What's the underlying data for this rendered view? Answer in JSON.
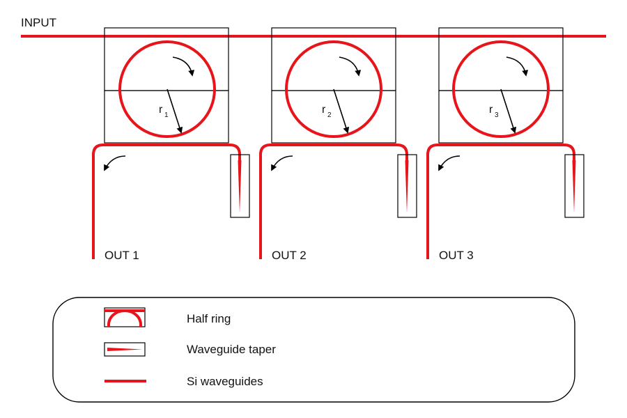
{
  "input_label": "INPUT",
  "stages": [
    {
      "radius_symbol": "r",
      "radius_index": "1",
      "output_label": "OUT 1"
    },
    {
      "radius_symbol": "r",
      "radius_index": "2",
      "output_label": "OUT 2"
    },
    {
      "radius_symbol": "r",
      "radius_index": "3",
      "output_label": "OUT 3"
    }
  ],
  "legend": {
    "items": [
      {
        "label": "Half ring",
        "icon": "half-ring-icon"
      },
      {
        "label": "Waveguide taper",
        "icon": "waveguide-taper-icon"
      },
      {
        "label": "Si waveguides",
        "icon": "si-waveguide-icon"
      }
    ]
  },
  "colors": {
    "waveguide": "#e8141c",
    "outline": "#000000"
  }
}
